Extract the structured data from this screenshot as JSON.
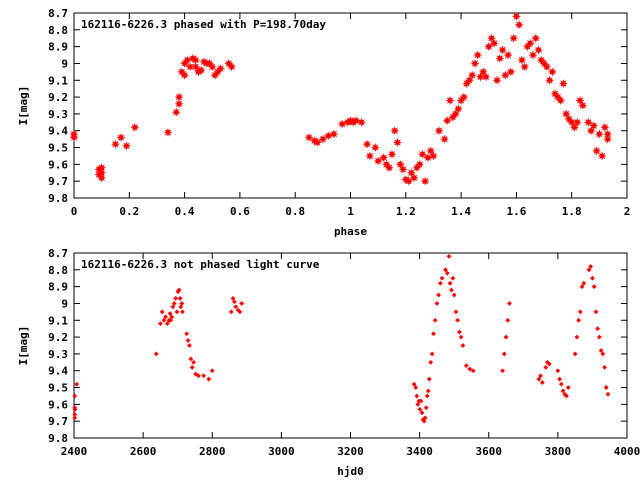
{
  "chart_data": [
    {
      "type": "scatter",
      "title": "162116-6226.3 phased with P=198.70day",
      "xlabel": "phase",
      "ylabel": "I[mag]",
      "xlim": [
        0,
        2
      ],
      "ylim": [
        9.8,
        8.7
      ],
      "y_inverted": true,
      "grid": false,
      "x_ticks": [
        "0",
        "0.2",
        "0.4",
        "0.6",
        "0.8",
        "1",
        "1.2",
        "1.4",
        "1.6",
        "1.8",
        "2"
      ],
      "y_ticks": [
        "8.7",
        "8.8",
        "8.9",
        "9",
        "9.1",
        "9.2",
        "9.3",
        "9.4",
        "9.5",
        "9.6",
        "9.7",
        "9.8"
      ],
      "marker": "star",
      "color": "#ff0000",
      "series": [
        {
          "x": [
            0.0,
            0.0,
            0.09,
            0.09,
            0.1,
            0.1,
            0.1,
            0.15,
            0.17,
            0.19,
            0.22,
            0.34,
            0.37,
            0.38,
            0.38,
            0.39,
            0.4,
            0.4,
            0.41,
            0.42,
            0.43,
            0.44,
            0.44,
            0.45,
            0.46,
            0.47,
            0.48,
            0.49,
            0.5,
            0.51,
            0.52,
            0.53,
            0.56,
            0.57,
            0.85,
            0.87,
            0.88,
            0.9,
            0.92,
            0.94,
            0.97,
            0.99,
            1.0,
            1.01,
            1.02,
            1.04,
            1.06,
            1.07,
            1.09,
            1.1,
            1.12,
            1.13,
            1.14,
            1.15,
            1.16,
            1.17,
            1.18,
            1.19,
            1.2,
            1.21,
            1.22,
            1.23,
            1.24,
            1.25,
            1.26,
            1.27,
            1.28,
            1.29,
            1.3,
            1.32,
            1.34,
            1.35,
            1.36,
            1.37,
            1.38,
            1.39,
            1.4,
            1.41,
            1.42,
            1.43,
            1.44,
            1.45,
            1.46,
            1.47,
            1.48,
            1.49,
            1.5,
            1.51,
            1.52,
            1.53,
            1.54,
            1.55,
            1.56,
            1.57,
            1.58,
            1.59,
            1.6,
            1.61,
            1.62,
            1.63,
            1.64,
            1.65,
            1.66,
            1.67,
            1.68,
            1.69,
            1.7,
            1.71,
            1.72,
            1.73,
            1.74,
            1.75,
            1.76,
            1.77,
            1.78,
            1.79,
            1.8,
            1.81,
            1.82,
            1.83,
            1.84,
            1.86,
            1.87,
            1.88,
            1.89,
            1.9,
            1.91,
            1.92,
            1.93,
            1.93
          ],
          "y": [
            9.42,
            9.44,
            9.63,
            9.66,
            9.62,
            9.68,
            9.65,
            9.48,
            9.44,
            9.49,
            9.38,
            9.41,
            9.29,
            9.24,
            9.2,
            9.05,
            9.0,
            9.07,
            8.98,
            9.02,
            8.97,
            9.02,
            8.98,
            9.05,
            9.04,
            8.99,
            9.0,
            9.0,
            9.02,
            9.07,
            9.05,
            9.03,
            9.0,
            9.02,
            9.44,
            9.46,
            9.47,
            9.45,
            9.43,
            9.42,
            9.36,
            9.35,
            9.34,
            9.35,
            9.34,
            9.35,
            9.48,
            9.55,
            9.5,
            9.58,
            9.56,
            9.6,
            9.62,
            9.54,
            9.4,
            9.47,
            9.6,
            9.63,
            9.69,
            9.7,
            9.65,
            9.68,
            9.62,
            9.6,
            9.54,
            9.7,
            9.56,
            9.52,
            9.55,
            9.4,
            9.45,
            9.34,
            9.22,
            9.32,
            9.3,
            9.27,
            9.22,
            9.2,
            9.12,
            9.1,
            9.07,
            9.0,
            8.95,
            9.08,
            9.05,
            9.08,
            8.9,
            8.85,
            8.88,
            9.1,
            8.97,
            8.92,
            9.07,
            8.95,
            9.05,
            8.85,
            8.72,
            8.77,
            8.98,
            9.02,
            8.9,
            8.88,
            8.95,
            8.85,
            8.92,
            8.98,
            9.0,
            9.02,
            9.1,
            9.05,
            9.18,
            9.2,
            9.22,
            9.12,
            9.3,
            9.33,
            9.35,
            9.38,
            9.35,
            9.22,
            9.25,
            9.35,
            9.4,
            9.37,
            9.52,
            9.42,
            9.55,
            9.38,
            9.42,
            9.45
          ]
        }
      ]
    },
    {
      "type": "scatter",
      "title": "162116-6226.3 not phased light curve",
      "xlabel": "hjd0",
      "ylabel": "I[mag]",
      "xlim": [
        2400,
        4000
      ],
      "ylim": [
        9.8,
        8.7
      ],
      "y_inverted": true,
      "grid": false,
      "x_ticks": [
        "2400",
        "2600",
        "2800",
        "3000",
        "3200",
        "3400",
        "3600",
        "3800",
        "4000"
      ],
      "y_ticks": [
        "8.7",
        "8.8",
        "8.9",
        "9",
        "9.1",
        "9.2",
        "9.3",
        "9.4",
        "9.5",
        "9.6",
        "9.7",
        "9.8"
      ],
      "marker": "diamond",
      "color": "#ff0000",
      "series": [
        {
          "x": [
            2402,
            2402,
            2402,
            2402,
            2403,
            2408,
            2638,
            2650,
            2655,
            2660,
            2665,
            2670,
            2675,
            2678,
            2680,
            2683,
            2686,
            2690,
            2694,
            2698,
            2701,
            2704,
            2707,
            2709,
            2712,
            2714,
            2726,
            2730,
            2734,
            2738,
            2742,
            2746,
            2752,
            2760,
            2775,
            2790,
            2800,
            2855,
            2860,
            2864,
            2868,
            2875,
            2880,
            2885,
            3384,
            3389,
            3392,
            3395,
            3398,
            3401,
            3404,
            3407,
            3410,
            3413,
            3416,
            3419,
            3422,
            3425,
            3428,
            3432,
            3436,
            3440,
            3445,
            3450,
            3455,
            3460,
            3465,
            3475,
            3480,
            3485,
            3488,
            3492,
            3496,
            3500,
            3505,
            3510,
            3515,
            3520,
            3525,
            3535,
            3545,
            3555,
            3640,
            3645,
            3650,
            3655,
            3660,
            3745,
            3750,
            3755,
            3765,
            3770,
            3775,
            3800,
            3805,
            3810,
            3815,
            3820,
            3825,
            3830,
            3850,
            3855,
            3860,
            3865,
            3870,
            3875,
            3890,
            3895,
            3900,
            3905,
            3910,
            3915,
            3920,
            3925,
            3930,
            3935,
            3940,
            3945
          ],
          "y": [
            9.55,
            9.62,
            9.66,
            9.68,
            9.63,
            9.48,
            9.3,
            9.12,
            9.05,
            9.1,
            9.08,
            9.12,
            9.1,
            9.06,
            9.1,
            9.08,
            9.02,
            9.0,
            8.97,
            9.05,
            8.93,
            8.92,
            8.97,
            9.02,
            9.0,
            9.05,
            9.18,
            9.22,
            9.25,
            9.33,
            9.38,
            9.35,
            9.42,
            9.43,
            9.43,
            9.45,
            9.4,
            9.05,
            8.97,
            8.99,
            9.02,
            9.04,
            9.05,
            9.0,
            9.48,
            9.5,
            9.55,
            9.6,
            9.58,
            9.63,
            9.58,
            9.65,
            9.69,
            9.7,
            9.68,
            9.62,
            9.55,
            9.52,
            9.45,
            9.35,
            9.3,
            9.18,
            9.1,
            9.0,
            8.95,
            8.88,
            8.85,
            8.8,
            8.82,
            8.72,
            8.88,
            8.92,
            8.85,
            8.95,
            9.05,
            9.1,
            9.17,
            9.2,
            9.25,
            9.37,
            9.39,
            9.4,
            9.4,
            9.3,
            9.2,
            9.1,
            9.0,
            9.45,
            9.43,
            9.47,
            9.38,
            9.35,
            9.36,
            9.4,
            9.45,
            9.48,
            9.52,
            9.54,
            9.55,
            9.5,
            9.3,
            9.2,
            9.1,
            9.05,
            8.9,
            8.88,
            8.8,
            8.78,
            8.85,
            8.9,
            9.05,
            9.15,
            9.2,
            9.28,
            9.3,
            9.38,
            9.5,
            9.54
          ]
        }
      ]
    }
  ]
}
